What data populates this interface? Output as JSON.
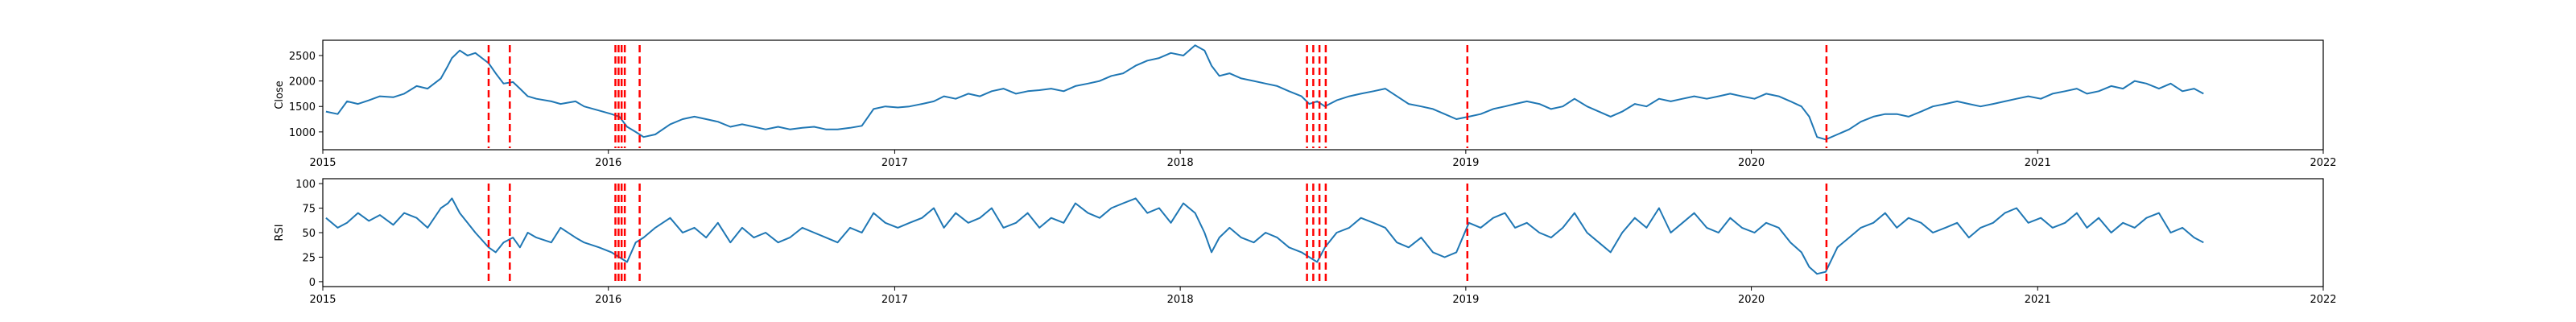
{
  "chart_data": [
    {
      "type": "line",
      "title": "",
      "xlabel": "",
      "ylabel": "Close",
      "xlim": [
        "2015-01-01",
        "2022-01-01"
      ],
      "ylim": [
        650,
        2800
      ],
      "xticks": [
        "2015",
        "2016",
        "2017",
        "2018",
        "2019",
        "2020",
        "2021",
        "2022"
      ],
      "yticks": [
        1000,
        1500,
        2000,
        2500
      ],
      "grid": false,
      "line_color": "#1f77b4",
      "series": [
        {
          "x": [
            "2015-01-05",
            "2015-01-20",
            "2015-02-01",
            "2015-02-15",
            "2015-03-01",
            "2015-03-15",
            "2015-04-01",
            "2015-04-15",
            "2015-05-01",
            "2015-05-15",
            "2015-06-01",
            "2015-06-10",
            "2015-06-15",
            "2015-06-25",
            "2015-07-05",
            "2015-07-15",
            "2015-08-01",
            "2015-08-10",
            "2015-08-20",
            "2015-09-01",
            "2015-09-10",
            "2015-09-20",
            "2015-10-01",
            "2015-10-20",
            "2015-11-01",
            "2015-11-20",
            "2015-12-01",
            "2015-12-20",
            "2016-01-05",
            "2016-01-15",
            "2016-01-25",
            "2016-02-05",
            "2016-02-15",
            "2016-03-01",
            "2016-03-20",
            "2016-04-05",
            "2016-04-20",
            "2016-05-05",
            "2016-05-20",
            "2016-06-05",
            "2016-06-20",
            "2016-07-05",
            "2016-07-20",
            "2016-08-05",
            "2016-08-20",
            "2016-09-05",
            "2016-09-20",
            "2016-10-05",
            "2016-10-20",
            "2016-11-05",
            "2016-11-20",
            "2016-12-05",
            "2016-12-20",
            "2017-01-05",
            "2017-01-20",
            "2017-02-05",
            "2017-02-20",
            "2017-03-05",
            "2017-03-20",
            "2017-04-05",
            "2017-04-20",
            "2017-05-05",
            "2017-05-20",
            "2017-06-05",
            "2017-06-20",
            "2017-07-05",
            "2017-07-20",
            "2017-08-05",
            "2017-08-20",
            "2017-09-05",
            "2017-09-20",
            "2017-10-05",
            "2017-10-20",
            "2017-11-05",
            "2017-11-20",
            "2017-12-05",
            "2017-12-20",
            "2018-01-05",
            "2018-01-20",
            "2018-02-01",
            "2018-02-10",
            "2018-02-20",
            "2018-03-05",
            "2018-03-20",
            "2018-04-05",
            "2018-04-20",
            "2018-05-05",
            "2018-05-20",
            "2018-06-05",
            "2018-06-15",
            "2018-06-25",
            "2018-07-05",
            "2018-07-20",
            "2018-08-05",
            "2018-08-20",
            "2018-09-05",
            "2018-09-20",
            "2018-10-05",
            "2018-10-20",
            "2018-11-05",
            "2018-11-20",
            "2018-12-05",
            "2018-12-20",
            "2019-01-05",
            "2019-01-20",
            "2019-02-05",
            "2019-02-20",
            "2019-03-05",
            "2019-03-20",
            "2019-04-05",
            "2019-04-20",
            "2019-05-05",
            "2019-05-20",
            "2019-06-05",
            "2019-06-20",
            "2019-07-05",
            "2019-07-20",
            "2019-08-05",
            "2019-08-20",
            "2019-09-05",
            "2019-09-20",
            "2019-10-05",
            "2019-10-20",
            "2019-11-05",
            "2019-11-20",
            "2019-12-05",
            "2019-12-20",
            "2020-01-05",
            "2020-01-20",
            "2020-02-05",
            "2020-02-20",
            "2020-03-05",
            "2020-03-15",
            "2020-03-25",
            "2020-04-05",
            "2020-04-20",
            "2020-05-05",
            "2020-05-20",
            "2020-06-05",
            "2020-06-20",
            "2020-07-05",
            "2020-07-20",
            "2020-08-05",
            "2020-08-20",
            "2020-09-05",
            "2020-09-20",
            "2020-10-05",
            "2020-10-20",
            "2020-11-05",
            "2020-11-20",
            "2020-12-05",
            "2020-12-20",
            "2021-01-05",
            "2021-01-20",
            "2021-02-05",
            "2021-02-20",
            "2021-03-05",
            "2021-03-20",
            "2021-04-05",
            "2021-04-20",
            "2021-05-05",
            "2021-05-20",
            "2021-06-05",
            "2021-06-20",
            "2021-07-05",
            "2021-07-20",
            "2021-08-01"
          ],
          "y": [
            1400,
            1350,
            1600,
            1550,
            1620,
            1700,
            1680,
            1750,
            1900,
            1850,
            2050,
            2300,
            2450,
            2600,
            2500,
            2550,
            2350,
            2150,
            1950,
            1980,
            1850,
            1700,
            1650,
            1600,
            1550,
            1600,
            1500,
            1420,
            1350,
            1300,
            1100,
            1000,
            900,
            950,
            1150,
            1250,
            1300,
            1250,
            1200,
            1100,
            1150,
            1100,
            1050,
            1100,
            1050,
            1080,
            1100,
            1050,
            1050,
            1080,
            1120,
            1450,
            1500,
            1480,
            1500,
            1550,
            1600,
            1700,
            1650,
            1750,
            1700,
            1800,
            1850,
            1750,
            1800,
            1820,
            1850,
            1800,
            1900,
            1950,
            2000,
            2100,
            2150,
            2300,
            2400,
            2450,
            2550,
            2500,
            2700,
            2600,
            2300,
            2100,
            2150,
            2050,
            2000,
            1950,
            1900,
            1800,
            1700,
            1550,
            1600,
            1500,
            1620,
            1700,
            1750,
            1800,
            1850,
            1700,
            1550,
            1500,
            1450,
            1350,
            1250,
            1300,
            1350,
            1450,
            1500,
            1550,
            1600,
            1550,
            1450,
            1500,
            1650,
            1500,
            1400,
            1300,
            1400,
            1550,
            1500,
            1650,
            1600,
            1650,
            1700,
            1650,
            1700,
            1750,
            1700,
            1650,
            1750,
            1700,
            1600,
            1500,
            1300,
            900,
            850,
            950,
            1050,
            1200,
            1300,
            1350,
            1350,
            1300,
            1400,
            1500,
            1550,
            1600,
            1550,
            1500,
            1550,
            1600,
            1650,
            1700,
            1650,
            1750,
            1800,
            1850,
            1750,
            1800,
            1900,
            1850,
            2000,
            1950,
            1850,
            1950,
            1800,
            1850,
            1750
          ]
        }
      ],
      "vlines": [
        "2015-08-01",
        "2015-08-28",
        "2016-01-10",
        "2016-01-14",
        "2016-01-18",
        "2016-01-22",
        "2016-02-10",
        "2018-06-12",
        "2018-06-20",
        "2018-06-28",
        "2018-07-06",
        "2019-01-03",
        "2020-04-06"
      ],
      "vline_color": "#ff0000"
    },
    {
      "type": "line",
      "title": "",
      "xlabel": "",
      "ylabel": "RSI",
      "xlim": [
        "2015-01-01",
        "2022-01-01"
      ],
      "ylim": [
        -5,
        105
      ],
      "xticks": [
        "2015",
        "2016",
        "2017",
        "2018",
        "2019",
        "2020",
        "2021",
        "2022"
      ],
      "yticks": [
        0,
        25,
        50,
        75,
        100
      ],
      "grid": false,
      "line_color": "#1f77b4",
      "series": [
        {
          "x": [
            "2015-01-05",
            "2015-01-20",
            "2015-02-01",
            "2015-02-15",
            "2015-03-01",
            "2015-03-15",
            "2015-04-01",
            "2015-04-15",
            "2015-05-01",
            "2015-05-15",
            "2015-06-01",
            "2015-06-10",
            "2015-06-15",
            "2015-06-25",
            "2015-07-05",
            "2015-07-15",
            "2015-08-01",
            "2015-08-10",
            "2015-08-20",
            "2015-09-01",
            "2015-09-10",
            "2015-09-20",
            "2015-10-01",
            "2015-10-20",
            "2015-11-01",
            "2015-11-20",
            "2015-12-01",
            "2015-12-20",
            "2016-01-05",
            "2016-01-15",
            "2016-01-25",
            "2016-02-05",
            "2016-02-15",
            "2016-03-01",
            "2016-03-20",
            "2016-04-05",
            "2016-04-20",
            "2016-05-05",
            "2016-05-20",
            "2016-06-05",
            "2016-06-20",
            "2016-07-05",
            "2016-07-20",
            "2016-08-05",
            "2016-08-20",
            "2016-09-05",
            "2016-09-20",
            "2016-10-05",
            "2016-10-20",
            "2016-11-05",
            "2016-11-20",
            "2016-12-05",
            "2016-12-20",
            "2017-01-05",
            "2017-01-20",
            "2017-02-05",
            "2017-02-20",
            "2017-03-05",
            "2017-03-20",
            "2017-04-05",
            "2017-04-20",
            "2017-05-05",
            "2017-05-20",
            "2017-06-05",
            "2017-06-20",
            "2017-07-05",
            "2017-07-20",
            "2017-08-05",
            "2017-08-20",
            "2017-09-05",
            "2017-09-20",
            "2017-10-05",
            "2017-10-20",
            "2017-11-05",
            "2017-11-20",
            "2017-12-05",
            "2017-12-20",
            "2018-01-05",
            "2018-01-20",
            "2018-02-01",
            "2018-02-10",
            "2018-02-20",
            "2018-03-05",
            "2018-03-20",
            "2018-04-05",
            "2018-04-20",
            "2018-05-05",
            "2018-05-20",
            "2018-06-05",
            "2018-06-15",
            "2018-06-25",
            "2018-07-05",
            "2018-07-20",
            "2018-08-05",
            "2018-08-20",
            "2018-09-05",
            "2018-09-20",
            "2018-10-05",
            "2018-10-20",
            "2018-11-05",
            "2018-11-20",
            "2018-12-05",
            "2018-12-20",
            "2019-01-05",
            "2019-01-20",
            "2019-02-05",
            "2019-02-20",
            "2019-03-05",
            "2019-03-20",
            "2019-04-05",
            "2019-04-20",
            "2019-05-05",
            "2019-05-20",
            "2019-06-05",
            "2019-06-20",
            "2019-07-05",
            "2019-07-20",
            "2019-08-05",
            "2019-08-20",
            "2019-09-05",
            "2019-09-20",
            "2019-10-05",
            "2019-10-20",
            "2019-11-05",
            "2019-11-20",
            "2019-12-05",
            "2019-12-20",
            "2020-01-05",
            "2020-01-20",
            "2020-02-05",
            "2020-02-20",
            "2020-03-05",
            "2020-03-15",
            "2020-03-25",
            "2020-04-05",
            "2020-04-20",
            "2020-05-05",
            "2020-05-20",
            "2020-06-05",
            "2020-06-20",
            "2020-07-05",
            "2020-07-20",
            "2020-08-05",
            "2020-08-20",
            "2020-09-05",
            "2020-09-20",
            "2020-10-05",
            "2020-10-20",
            "2020-11-05",
            "2020-11-20",
            "2020-12-05",
            "2020-12-20",
            "2021-01-05",
            "2021-01-20",
            "2021-02-05",
            "2021-02-20",
            "2021-03-05",
            "2021-03-20",
            "2021-04-05",
            "2021-04-20",
            "2021-05-05",
            "2021-05-20",
            "2021-06-05",
            "2021-06-20",
            "2021-07-05",
            "2021-07-20",
            "2021-08-01"
          ],
          "y": [
            65,
            55,
            60,
            70,
            62,
            68,
            58,
            70,
            65,
            55,
            75,
            80,
            85,
            70,
            60,
            50,
            35,
            30,
            40,
            45,
            35,
            50,
            45,
            40,
            55,
            45,
            40,
            35,
            30,
            25,
            20,
            40,
            45,
            55,
            65,
            50,
            55,
            45,
            60,
            40,
            55,
            45,
            50,
            40,
            45,
            55,
            50,
            45,
            40,
            55,
            50,
            70,
            60,
            55,
            60,
            65,
            75,
            55,
            70,
            60,
            65,
            75,
            55,
            60,
            70,
            55,
            65,
            60,
            80,
            70,
            65,
            75,
            80,
            85,
            70,
            75,
            60,
            80,
            70,
            50,
            30,
            45,
            55,
            45,
            40,
            50,
            45,
            35,
            30,
            25,
            20,
            35,
            50,
            55,
            65,
            60,
            55,
            40,
            35,
            45,
            30,
            25,
            30,
            60,
            55,
            65,
            70,
            55,
            60,
            50,
            45,
            55,
            70,
            50,
            40,
            30,
            50,
            65,
            55,
            75,
            50,
            60,
            70,
            55,
            50,
            65,
            55,
            50,
            60,
            55,
            40,
            30,
            15,
            8,
            10,
            35,
            45,
            55,
            60,
            70,
            55,
            65,
            60,
            50,
            55,
            60,
            45,
            55,
            60,
            70,
            75,
            60,
            65,
            55,
            60,
            70,
            55,
            65,
            50,
            60,
            55,
            65,
            70,
            50,
            55,
            45,
            40
          ]
        }
      ],
      "vlines": [
        "2015-08-01",
        "2015-08-28",
        "2016-01-10",
        "2016-01-14",
        "2016-01-18",
        "2016-01-22",
        "2016-02-10",
        "2018-06-12",
        "2018-06-20",
        "2018-06-28",
        "2018-07-06",
        "2019-01-03",
        "2020-04-06"
      ],
      "vline_color": "#ff0000"
    }
  ]
}
